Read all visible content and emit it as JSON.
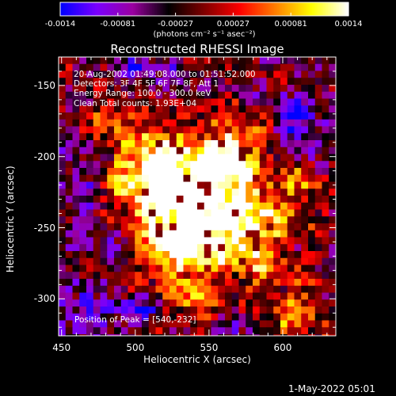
{
  "colorbar": {
    "min": -0.0014,
    "max": 0.0014,
    "tick_labels": [
      "-0.0014",
      "-0.00081",
      "-0.00027",
      "0.00027",
      "0.00081",
      "0.0014"
    ],
    "unit_label": "(photons cm⁻² s⁻¹ asec⁻²)",
    "palette": [
      "#0000ff",
      "#7a00ff",
      "#9a00a0",
      "#000000",
      "#800000",
      "#ff0000",
      "#ff8000",
      "#ffff00",
      "#ffffff"
    ]
  },
  "chart_data": {
    "type": "heatmap",
    "title": "Reconstructed RHESSI Image",
    "xlabel": "Heliocentric X (arcsec)",
    "ylabel": "Heliocentric Y (arcsec)",
    "xlim": [
      448,
      636
    ],
    "ylim": [
      -326,
      -130
    ],
    "x_ticks": [
      450,
      500,
      550,
      600
    ],
    "y_ticks": [
      -150,
      -200,
      -250,
      -300
    ],
    "annotations": [
      "20-Aug-2002 01:49:08.000 to 01:51:52.000",
      "Detectors: 3F 4F 5F 6F 7F 8F, Att 1",
      "Energy Range: 100.0 - 300.0 keV",
      "Clean     Total counts: 1.93E+04"
    ],
    "peak_label": "Position of Peak = [540,-232]",
    "peak": [
      540,
      -232
    ],
    "grid": false,
    "legend": "colorbar top"
  },
  "footer": {
    "timestamp": "1-May-2022 05:01"
  }
}
